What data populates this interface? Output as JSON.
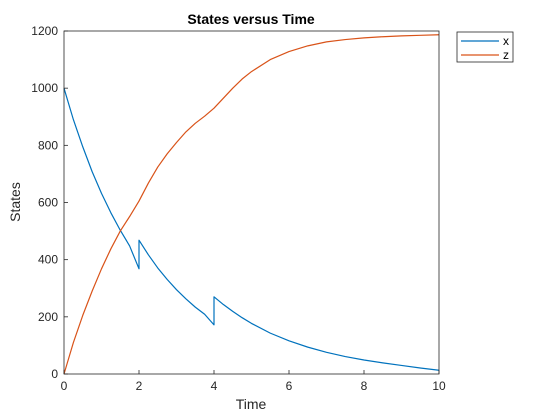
{
  "chart_data": {
    "type": "line",
    "title": "States versus Time",
    "xlabel": "Time",
    "ylabel": "States",
    "xlim": [
      0,
      10
    ],
    "ylim": [
      0,
      1200
    ],
    "xticks": [
      "0",
      "2",
      "4",
      "6",
      "8",
      "10"
    ],
    "yticks": [
      "0",
      "200",
      "400",
      "600",
      "800",
      "1000",
      "1200"
    ],
    "grid": false,
    "legend_position": "outside top-right",
    "series": [
      {
        "name": "x",
        "color": "#0072BD",
        "points": [
          [
            0,
            1000
          ],
          [
            0.25,
            890
          ],
          [
            0.5,
            795
          ],
          [
            0.75,
            708
          ],
          [
            1,
            632
          ],
          [
            1.25,
            564
          ],
          [
            1.5,
            503
          ],
          [
            1.75,
            448
          ],
          [
            2,
            368
          ],
          [
            2,
            468
          ],
          [
            2.25,
            417
          ],
          [
            2.5,
            371
          ],
          [
            2.75,
            331
          ],
          [
            3,
            295
          ],
          [
            3.25,
            263
          ],
          [
            3.5,
            234
          ],
          [
            3.75,
            209
          ],
          [
            4,
            172
          ],
          [
            4,
            270
          ],
          [
            4.25,
            243
          ],
          [
            4.5,
            219
          ],
          [
            4.75,
            197
          ],
          [
            5,
            177
          ],
          [
            5.5,
            143
          ],
          [
            6,
            116
          ],
          [
            6.5,
            94
          ],
          [
            7,
            76
          ],
          [
            7.5,
            61
          ],
          [
            8,
            49
          ],
          [
            8.5,
            39
          ],
          [
            9,
            30
          ],
          [
            9.5,
            21
          ],
          [
            10,
            13
          ]
        ]
      },
      {
        "name": "z",
        "color": "#D95319",
        "points": [
          [
            0,
            0
          ],
          [
            0.25,
            110
          ],
          [
            0.5,
            205
          ],
          [
            0.75,
            290
          ],
          [
            1,
            368
          ],
          [
            1.25,
            438
          ],
          [
            1.5,
            500
          ],
          [
            1.75,
            551
          ],
          [
            2,
            605
          ],
          [
            2.25,
            668
          ],
          [
            2.5,
            724
          ],
          [
            2.75,
            770
          ],
          [
            3,
            810
          ],
          [
            3.25,
            847
          ],
          [
            3.5,
            877
          ],
          [
            3.75,
            902
          ],
          [
            4,
            930
          ],
          [
            4.25,
            965
          ],
          [
            4.5,
            1000
          ],
          [
            4.75,
            1032
          ],
          [
            5,
            1058
          ],
          [
            5.5,
            1100
          ],
          [
            6,
            1128
          ],
          [
            6.5,
            1148
          ],
          [
            7,
            1162
          ],
          [
            7.5,
            1170
          ],
          [
            8,
            1176
          ],
          [
            8.5,
            1180
          ],
          [
            9,
            1183
          ],
          [
            9.5,
            1185
          ],
          [
            10,
            1187
          ]
        ]
      }
    ]
  }
}
